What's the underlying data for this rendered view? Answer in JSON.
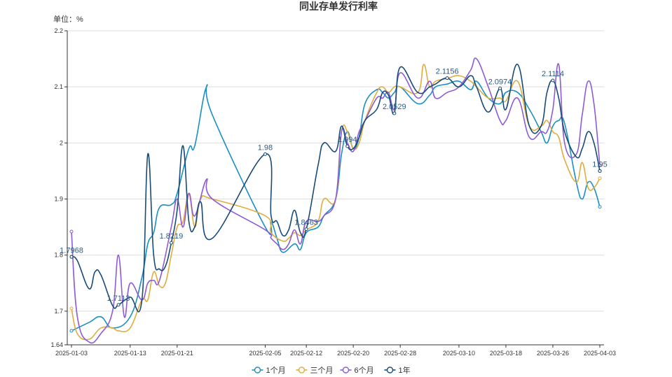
{
  "chart_data": {
    "type": "line",
    "title": "同业存单发行利率",
    "unit_label": "单位：%",
    "xlabel": "",
    "ylabel": "",
    "ylim": [
      1.64,
      2.2
    ],
    "y_ticks": [
      "1.64",
      "1.7",
      "1.8",
      "1.9",
      "2",
      "2.1",
      "2.2"
    ],
    "x_range": [
      "2025-01-03",
      "2025-04-03"
    ],
    "x_ticks": [
      "2025-01-03",
      "2025-01-13",
      "2025-01-21",
      "2025-02-05",
      "2025-02-12",
      "2025-02-20",
      "2025-02-28",
      "2025-03-10",
      "2025-03-18",
      "2025-03-26",
      "2025-04-03"
    ],
    "grid": true,
    "legend_position": "bottom",
    "series": [
      {
        "name": "1个月",
        "color": "#1a8fc4",
        "points": [
          [
            "2025-01-03",
            1.665
          ],
          [
            "2025-01-06",
            1.68
          ],
          [
            "2025-01-08",
            1.69
          ],
          [
            "2025-01-10",
            1.67
          ],
          [
            "2025-01-13",
            1.69
          ],
          [
            "2025-01-15",
            1.76
          ],
          [
            "2025-01-16",
            1.82
          ],
          [
            "2025-01-17",
            1.84
          ],
          [
            "2025-01-18",
            1.885
          ],
          [
            "2025-01-20",
            1.89
          ],
          [
            "2025-01-21",
            1.91
          ],
          [
            "2025-01-23",
            1.99
          ],
          [
            "2025-01-24",
            1.995
          ],
          [
            "2025-01-26",
            2.1
          ],
          [
            "2025-01-27",
            2.05
          ],
          [
            "2025-02-05",
            1.85
          ],
          [
            "2025-02-06",
            1.86
          ],
          [
            "2025-02-07",
            1.83
          ],
          [
            "2025-02-08",
            1.805
          ],
          [
            "2025-02-10",
            1.82
          ],
          [
            "2025-02-11",
            1.81
          ],
          [
            "2025-02-12",
            1.84
          ],
          [
            "2025-02-14",
            1.85
          ],
          [
            "2025-02-15",
            1.87
          ],
          [
            "2025-02-17",
            1.9
          ],
          [
            "2025-02-18",
            1.98
          ],
          [
            "2025-02-19",
            2.02
          ],
          [
            "2025-02-20",
            1.99
          ],
          [
            "2025-02-21",
            2.01
          ],
          [
            "2025-02-22",
            2.07
          ],
          [
            "2025-02-24",
            2.095
          ],
          [
            "2025-02-25",
            2.09
          ],
          [
            "2025-02-26",
            2.08
          ],
          [
            "2025-02-27",
            2.09
          ],
          [
            "2025-02-28",
            2.1
          ],
          [
            "2025-03-03",
            2.07
          ],
          [
            "2025-03-05",
            2.085
          ],
          [
            "2025-03-06",
            2.1
          ],
          [
            "2025-03-08",
            2.105
          ],
          [
            "2025-03-10",
            2.11
          ],
          [
            "2025-03-12",
            2.095
          ],
          [
            "2025-03-13",
            2.11
          ],
          [
            "2025-03-15",
            2.08
          ],
          [
            "2025-03-17",
            2.07
          ],
          [
            "2025-03-18",
            2.09
          ],
          [
            "2025-03-20",
            2.09
          ],
          [
            "2025-03-22",
            2.06
          ],
          [
            "2025-03-24",
            2.02
          ],
          [
            "2025-03-25",
            2.0
          ],
          [
            "2025-03-26",
            2.03
          ],
          [
            "2025-03-27",
            2.04
          ],
          [
            "2025-03-28",
            2.035
          ],
          [
            "2025-03-30",
            1.93
          ],
          [
            "2025-03-31",
            1.9
          ],
          [
            "2025-04-01",
            1.93
          ],
          [
            "2025-04-02",
            1.92
          ],
          [
            "2025-04-03",
            1.886
          ]
        ]
      },
      {
        "name": "三个月",
        "color": "#e0ac3e",
        "points": [
          [
            "2025-01-03",
            1.705
          ],
          [
            "2025-01-04",
            1.66
          ],
          [
            "2025-01-06",
            1.65
          ],
          [
            "2025-01-08",
            1.67
          ],
          [
            "2025-01-10",
            1.67
          ],
          [
            "2025-01-11",
            1.665
          ],
          [
            "2025-01-13",
            1.67
          ],
          [
            "2025-01-15",
            1.72
          ],
          [
            "2025-01-16",
            1.72
          ],
          [
            "2025-01-17",
            1.77
          ],
          [
            "2025-01-18",
            1.745
          ],
          [
            "2025-01-19",
            1.75
          ],
          [
            "2025-01-20",
            1.8
          ],
          [
            "2025-01-21",
            1.85
          ],
          [
            "2025-01-22",
            1.86
          ],
          [
            "2025-01-23",
            1.91
          ],
          [
            "2025-01-24",
            1.85
          ],
          [
            "2025-01-25",
            1.9
          ],
          [
            "2025-01-27",
            1.9
          ],
          [
            "2025-02-05",
            1.87
          ],
          [
            "2025-02-06",
            1.84
          ],
          [
            "2025-02-08",
            1.825
          ],
          [
            "2025-02-09",
            1.83
          ],
          [
            "2025-02-10",
            1.84
          ],
          [
            "2025-02-11",
            1.835
          ],
          [
            "2025-02-12",
            1.845
          ],
          [
            "2025-02-14",
            1.86
          ],
          [
            "2025-02-15",
            1.9
          ],
          [
            "2025-02-17",
            1.9
          ],
          [
            "2025-02-18",
            2.02
          ],
          [
            "2025-02-19",
            2.02
          ],
          [
            "2025-02-20",
            1.99
          ],
          [
            "2025-02-21",
            2.0
          ],
          [
            "2025-02-22",
            2.04
          ],
          [
            "2025-02-24",
            2.09
          ],
          [
            "2025-02-25",
            2.1
          ],
          [
            "2025-02-26",
            2.09
          ],
          [
            "2025-02-27",
            2.1
          ],
          [
            "2025-02-28",
            2.1
          ],
          [
            "2025-03-03",
            2.09
          ],
          [
            "2025-03-04",
            2.14
          ],
          [
            "2025-03-05",
            2.1
          ],
          [
            "2025-03-06",
            2.11
          ],
          [
            "2025-03-08",
            2.115
          ],
          [
            "2025-03-10",
            2.12
          ],
          [
            "2025-03-12",
            2.11
          ],
          [
            "2025-03-13",
            2.1
          ],
          [
            "2025-03-15",
            2.08
          ],
          [
            "2025-03-17",
            2.08
          ],
          [
            "2025-03-18",
            2.075
          ],
          [
            "2025-03-20",
            2.11
          ],
          [
            "2025-03-22",
            2.03
          ],
          [
            "2025-03-24",
            2.03
          ],
          [
            "2025-03-25",
            2.04
          ],
          [
            "2025-03-26",
            2.02
          ],
          [
            "2025-03-27",
            2.01
          ],
          [
            "2025-03-28",
            1.97
          ],
          [
            "2025-03-30",
            1.93
          ],
          [
            "2025-03-31",
            1.965
          ],
          [
            "2025-04-01",
            1.92
          ],
          [
            "2025-04-02",
            1.92
          ],
          [
            "2025-04-03",
            1.937
          ]
        ]
      },
      {
        "name": "6个月",
        "color": "#8e5bd6",
        "points": [
          [
            "2025-01-03",
            1.842
          ],
          [
            "2025-01-04",
            1.69
          ],
          [
            "2025-01-06",
            1.645
          ],
          [
            "2025-01-08",
            1.66
          ],
          [
            "2025-01-10",
            1.7
          ],
          [
            "2025-01-11",
            1.8
          ],
          [
            "2025-01-12",
            1.69
          ],
          [
            "2025-01-13",
            1.75
          ],
          [
            "2025-01-15",
            1.72
          ],
          [
            "2025-01-16",
            1.75
          ],
          [
            "2025-01-17",
            1.755
          ],
          [
            "2025-01-18",
            1.755
          ],
          [
            "2025-01-20",
            1.85
          ],
          [
            "2025-01-21",
            1.9
          ],
          [
            "2025-01-22",
            1.85
          ],
          [
            "2025-01-23",
            1.91
          ],
          [
            "2025-01-24",
            1.87
          ],
          [
            "2025-01-26",
            1.935
          ],
          [
            "2025-01-27",
            1.9
          ],
          [
            "2025-02-05",
            1.845
          ],
          [
            "2025-02-06",
            1.83
          ],
          [
            "2025-02-07",
            1.82
          ],
          [
            "2025-02-08",
            1.81
          ],
          [
            "2025-02-09",
            1.82
          ],
          [
            "2025-02-10",
            1.845
          ],
          [
            "2025-02-11",
            1.82
          ],
          [
            "2025-02-12",
            1.86
          ],
          [
            "2025-02-14",
            1.86
          ],
          [
            "2025-02-15",
            1.87
          ],
          [
            "2025-02-17",
            1.9
          ],
          [
            "2025-02-18",
            2.02
          ],
          [
            "2025-02-19",
            2.0
          ],
          [
            "2025-02-20",
            1.985
          ],
          [
            "2025-02-21",
            2.02
          ],
          [
            "2025-02-22",
            2.04
          ],
          [
            "2025-02-24",
            2.08
          ],
          [
            "2025-02-25",
            2.08
          ],
          [
            "2025-02-26",
            2.09
          ],
          [
            "2025-02-27",
            2.06
          ],
          [
            "2025-02-28",
            2.125
          ],
          [
            "2025-03-03",
            2.08
          ],
          [
            "2025-03-05",
            2.11
          ],
          [
            "2025-03-06",
            2.08
          ],
          [
            "2025-03-08",
            2.09
          ],
          [
            "2025-03-10",
            2.1
          ],
          [
            "2025-03-12",
            2.13
          ],
          [
            "2025-03-13",
            2.15
          ],
          [
            "2025-03-15",
            2.1
          ],
          [
            "2025-03-17",
            2.04
          ],
          [
            "2025-03-18",
            2.04
          ],
          [
            "2025-03-20",
            2.08
          ],
          [
            "2025-03-22",
            2.01
          ],
          [
            "2025-03-24",
            2.02
          ],
          [
            "2025-03-25",
            2.02
          ],
          [
            "2025-03-26",
            2.06
          ],
          [
            "2025-03-27",
            2.14
          ],
          [
            "2025-03-28",
            2.0
          ],
          [
            "2025-03-30",
            1.98
          ],
          [
            "2025-03-31",
            2.05
          ],
          [
            "2025-04-01",
            2.11
          ],
          [
            "2025-04-02",
            2.07
          ],
          [
            "2025-04-03",
            1.96
          ]
        ]
      },
      {
        "name": "1年",
        "color": "#184b78",
        "points": [
          [
            "2025-01-03",
            1.7968
          ],
          [
            "2025-01-04",
            1.79
          ],
          [
            "2025-01-06",
            1.74
          ],
          [
            "2025-01-07",
            1.77
          ],
          [
            "2025-01-08",
            1.765
          ],
          [
            "2025-01-10",
            1.71
          ],
          [
            "2025-01-11",
            1.7113
          ],
          [
            "2025-01-13",
            1.725
          ],
          [
            "2025-01-15",
            1.72
          ],
          [
            "2025-01-16",
            1.98
          ],
          [
            "2025-01-17",
            1.8
          ],
          [
            "2025-01-18",
            1.775
          ],
          [
            "2025-01-19",
            1.78
          ],
          [
            "2025-01-20",
            1.8219
          ],
          [
            "2025-01-21",
            1.88
          ],
          [
            "2025-01-22",
            1.995
          ],
          [
            "2025-01-23",
            1.86
          ],
          [
            "2025-01-24",
            1.85
          ],
          [
            "2025-01-25",
            1.895
          ],
          [
            "2025-01-27",
            1.83
          ],
          [
            "2025-02-05",
            1.98
          ],
          [
            "2025-02-06",
            1.87
          ],
          [
            "2025-02-07",
            1.86
          ],
          [
            "2025-02-08",
            1.835
          ],
          [
            "2025-02-09",
            1.845
          ],
          [
            "2025-02-10",
            1.88
          ],
          [
            "2025-02-11",
            1.84
          ],
          [
            "2025-02-12",
            1.8463
          ],
          [
            "2025-02-14",
            1.96
          ],
          [
            "2025-02-15",
            2.0
          ],
          [
            "2025-02-17",
            1.985
          ],
          [
            "2025-02-18",
            2.03
          ],
          [
            "2025-02-19",
            1.994
          ],
          [
            "2025-02-20",
            1.99
          ],
          [
            "2025-02-21",
            2.01
          ],
          [
            "2025-02-22",
            2.04
          ],
          [
            "2025-02-24",
            2.06
          ],
          [
            "2025-02-25",
            2.09
          ],
          [
            "2025-02-26",
            2.085
          ],
          [
            "2025-02-27",
            2.0529
          ],
          [
            "2025-02-28",
            2.135
          ],
          [
            "2025-03-03",
            2.09
          ],
          [
            "2025-03-05",
            2.1
          ],
          [
            "2025-03-06",
            2.105
          ],
          [
            "2025-03-08",
            2.1156
          ],
          [
            "2025-03-10",
            2.1
          ],
          [
            "2025-03-12",
            2.12
          ],
          [
            "2025-03-13",
            2.1
          ],
          [
            "2025-03-15",
            2.055
          ],
          [
            "2025-03-17",
            2.0974
          ],
          [
            "2025-03-18",
            2.06
          ],
          [
            "2025-03-20",
            2.14
          ],
          [
            "2025-03-22",
            2.03
          ],
          [
            "2025-03-24",
            2.03
          ],
          [
            "2025-03-25",
            2.09
          ],
          [
            "2025-03-26",
            2.1114
          ],
          [
            "2025-03-27",
            2.08
          ],
          [
            "2025-03-28",
            2.02
          ],
          [
            "2025-03-30",
            1.975
          ],
          [
            "2025-03-31",
            1.99
          ],
          [
            "2025-04-01",
            2.02
          ],
          [
            "2025-04-02",
            2.0
          ],
          [
            "2025-04-03",
            1.95
          ]
        ]
      }
    ],
    "data_labels": [
      {
        "series": "1年",
        "date": "2025-01-03",
        "value": 1.7968,
        "text": "1.7968"
      },
      {
        "series": "1年",
        "date": "2025-01-11",
        "value": 1.7113,
        "text": "1.7113"
      },
      {
        "series": "1年",
        "date": "2025-01-20",
        "value": 1.8219,
        "text": "1.8219"
      },
      {
        "series": "1年",
        "date": "2025-02-05",
        "value": 1.98,
        "text": "1.98"
      },
      {
        "series": "1年",
        "date": "2025-02-12",
        "value": 1.8463,
        "text": "1.8463"
      },
      {
        "series": "1年",
        "date": "2025-02-19",
        "value": 1.994,
        "text": "1.994"
      },
      {
        "series": "1年",
        "date": "2025-02-27",
        "value": 2.0529,
        "text": "2.0529"
      },
      {
        "series": "1年",
        "date": "2025-03-08",
        "value": 2.1156,
        "text": "2.1156"
      },
      {
        "series": "1年",
        "date": "2025-03-17",
        "value": 2.0974,
        "text": "2.0974"
      },
      {
        "series": "1年",
        "date": "2025-03-26",
        "value": 2.1114,
        "text": "2.1114"
      },
      {
        "series": "1年",
        "date": "2025-04-03",
        "value": 1.95,
        "text": "1.95"
      }
    ]
  }
}
